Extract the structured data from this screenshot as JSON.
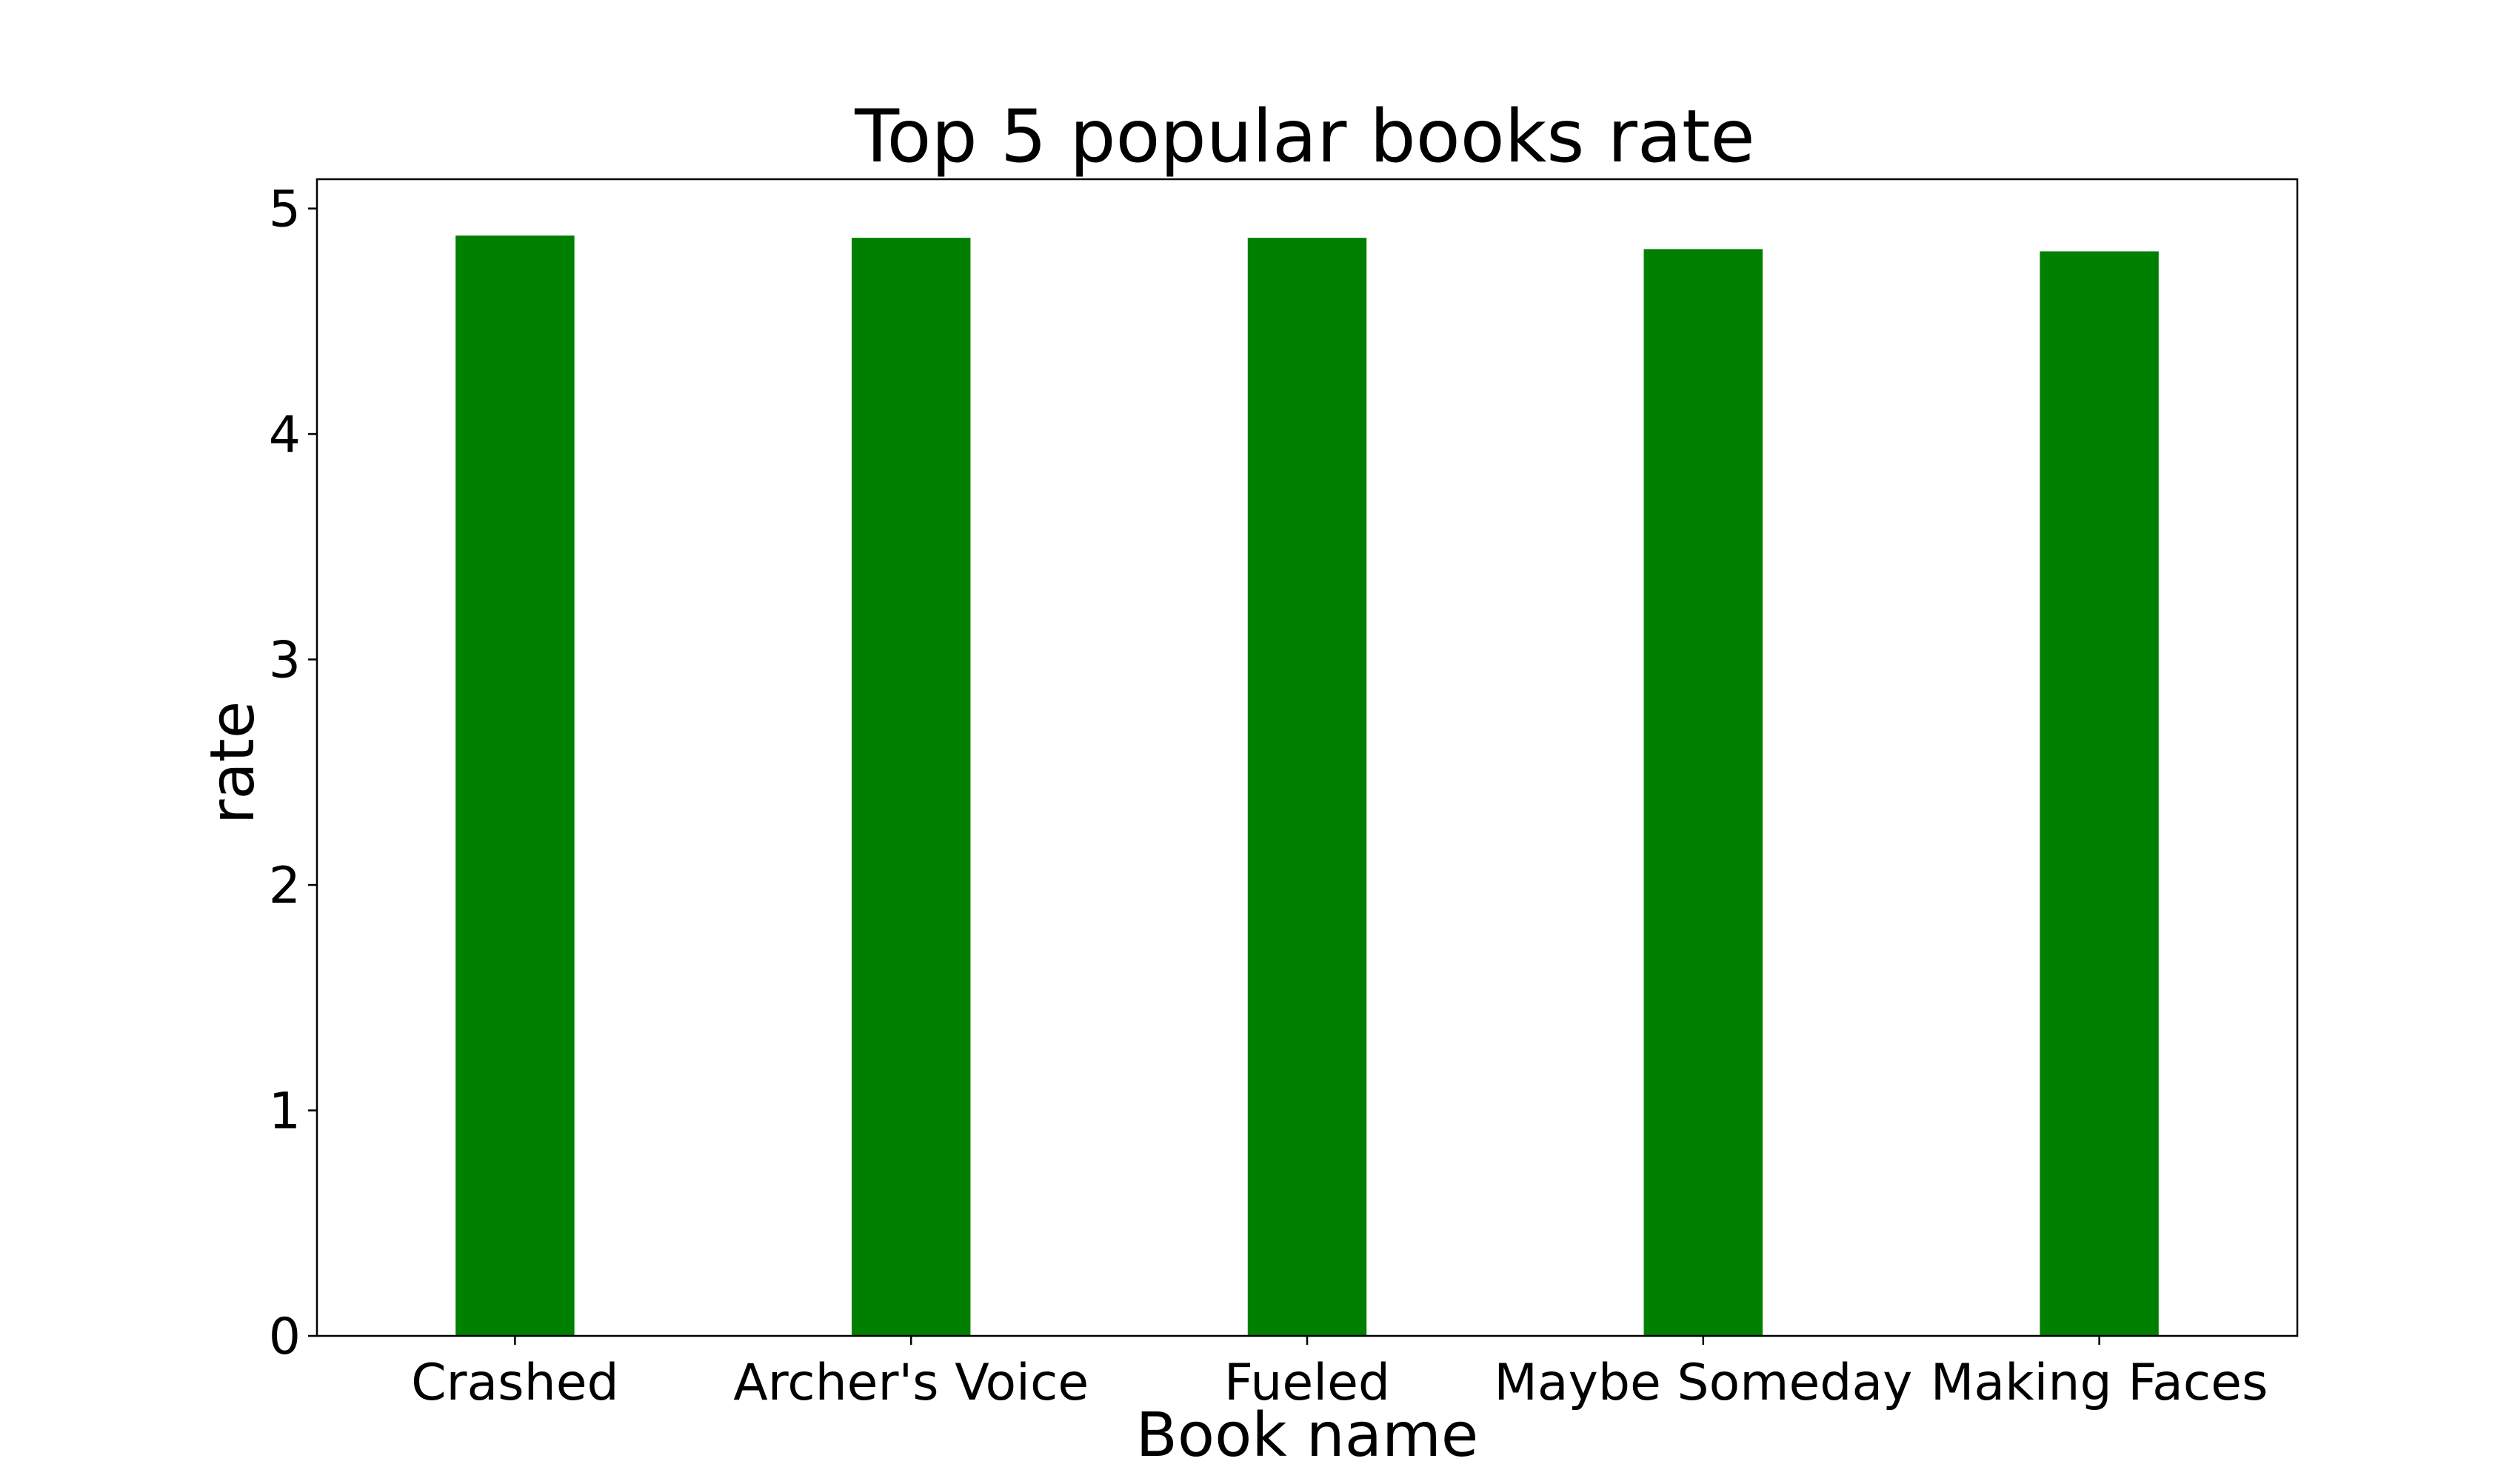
{
  "chart_data": {
    "type": "bar",
    "title": "Top 5 popular books rate",
    "xlabel": "Book name",
    "ylabel": "rate",
    "categories": [
      "Crashed",
      "Archer's Voice",
      "Fueled",
      "Maybe Someday",
      "Making Faces"
    ],
    "values": [
      4.88,
      4.87,
      4.87,
      4.82,
      4.81
    ],
    "ylim": [
      0,
      5.13
    ],
    "yticks": [
      0,
      1,
      2,
      3,
      4,
      5
    ],
    "bar_color": "#008000",
    "grid": false,
    "legend": "none"
  }
}
